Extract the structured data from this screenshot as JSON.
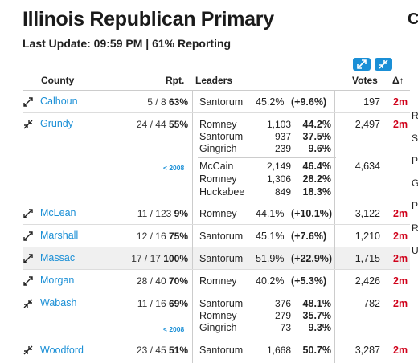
{
  "header": {
    "title": "Illinois Republican Primary",
    "subtitle": "Last Update: 09:59 PM | 61% Reporting",
    "edge_title": "C"
  },
  "columns": {
    "county": "County",
    "rpt": "Rpt.",
    "leaders": "Leaders",
    "votes": "Votes",
    "change": "Δ↑"
  },
  "rows": [
    {
      "county": "Calhoun",
      "rpt": "5 / 8",
      "rpt_pct": "63%",
      "cand": "Santorum",
      "pct": "45.2%",
      "margin": "(+9.6%)",
      "votes": "197",
      "change": "2m"
    },
    {
      "county": "Grundy",
      "rpt": "24 / 44",
      "rpt_pct": "55%",
      "votes": "2,497",
      "change": "2m",
      "leaders": [
        {
          "name": "Romney",
          "count": "1,103",
          "pct": "44.2%"
        },
        {
          "name": "Santorum",
          "count": "937",
          "pct": "37.5%"
        },
        {
          "name": "Gingrich",
          "count": "239",
          "pct": "9.6%"
        }
      ],
      "y2008": {
        "label": "< 2008",
        "votes": "4,634",
        "leaders": [
          {
            "name": "McCain",
            "count": "2,149",
            "pct": "46.4%"
          },
          {
            "name": "Romney",
            "count": "1,306",
            "pct": "28.2%"
          },
          {
            "name": "Huckabee",
            "count": "849",
            "pct": "18.3%"
          }
        ]
      }
    },
    {
      "county": "McLean",
      "rpt": "11 / 123",
      "rpt_pct": "9%",
      "cand": "Romney",
      "pct": "44.1%",
      "margin": "(+10.1%)",
      "votes": "3,122",
      "change": "2m"
    },
    {
      "county": "Marshall",
      "rpt": "12 / 16",
      "rpt_pct": "75%",
      "cand": "Santorum",
      "pct": "45.1%",
      "margin": "(+7.6%)",
      "votes": "1,210",
      "change": "2m"
    },
    {
      "county": "Massac",
      "rpt": "17 / 17",
      "rpt_pct": "100%",
      "cand": "Santorum",
      "pct": "51.9%",
      "margin": "(+22.9%)",
      "votes": "1,715",
      "change": "2m"
    },
    {
      "county": "Morgan",
      "rpt": "28 / 40",
      "rpt_pct": "70%",
      "cand": "Romney",
      "pct": "40.2%",
      "margin": "(+5.3%)",
      "votes": "2,426",
      "change": "2m"
    },
    {
      "county": "Wabash",
      "rpt": "11 / 16",
      "rpt_pct": "69%",
      "votes": "782",
      "change": "2m",
      "leaders": [
        {
          "name": "Santorum",
          "count": "376",
          "pct": "48.1%"
        },
        {
          "name": "Romney",
          "count": "279",
          "pct": "35.7%"
        },
        {
          "name": "Gingrich",
          "count": "73",
          "pct": "9.3%"
        }
      ],
      "y2008_label": "< 2008"
    },
    {
      "county": "Woodford",
      "rpt": "23 / 45",
      "rpt_pct": "51%",
      "cand": "Santorum",
      "count": "1,668",
      "pct": "50.7%",
      "votes": "3,287",
      "change": "2m"
    }
  ],
  "edge_letters": [
    "R",
    "S",
    "P",
    "G",
    "P",
    "R",
    "U"
  ],
  "colors": {
    "link": "#1a8fd6",
    "change": "#d0021b",
    "alt_row": "#f0f0f0"
  }
}
